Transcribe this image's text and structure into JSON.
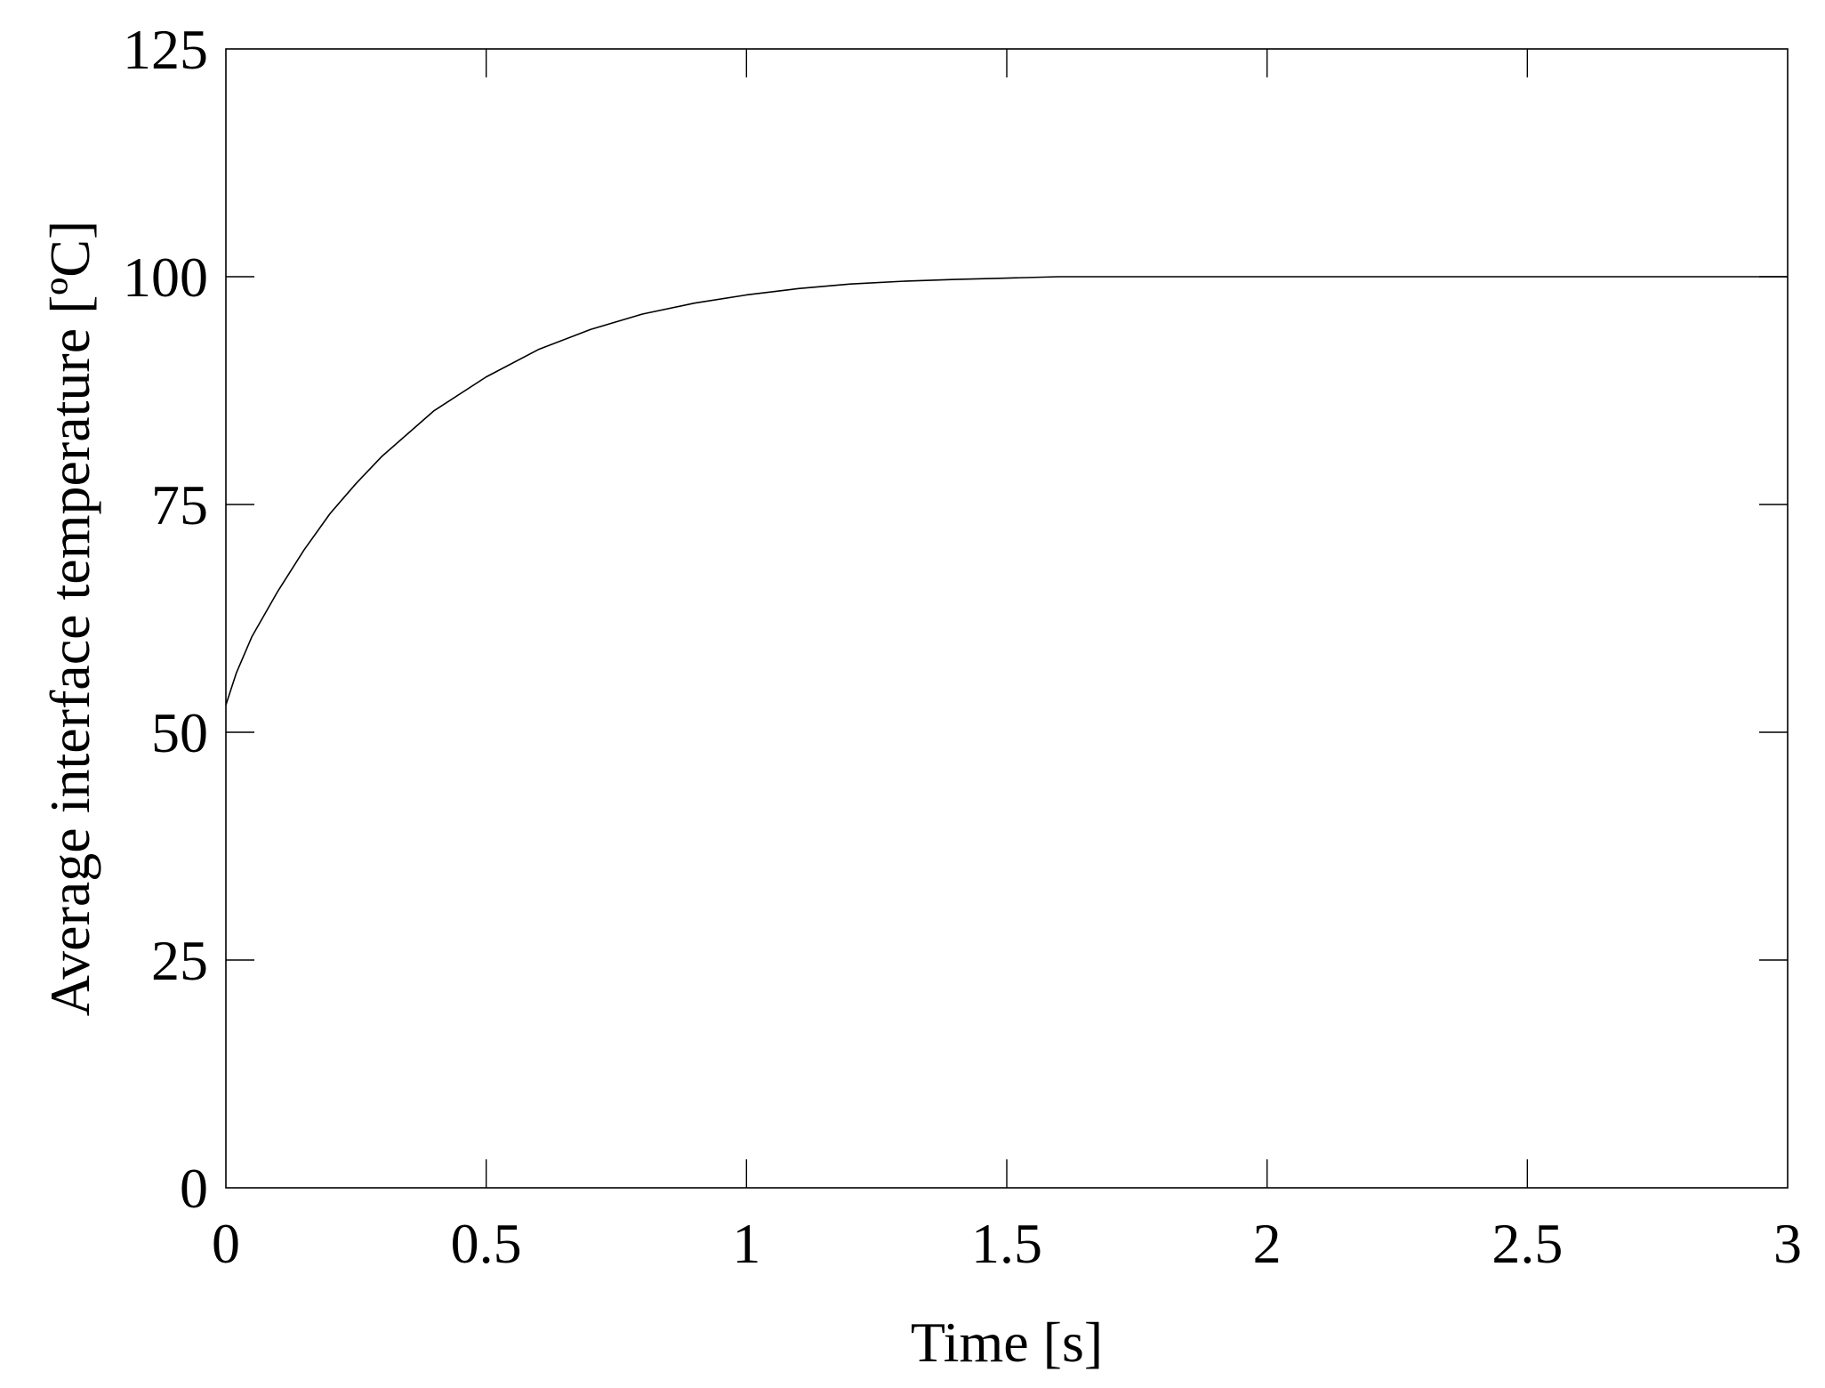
{
  "chart_data": {
    "type": "line",
    "title": "",
    "xlabel": "Time [s]",
    "ylabel": "Average interface temperature [ºC]",
    "xlim": [
      0,
      3
    ],
    "ylim": [
      0,
      125
    ],
    "x_ticks": [
      "0",
      "0.5",
      "1",
      "1.5",
      "2",
      "2.5",
      "3"
    ],
    "y_ticks": [
      "0",
      "25",
      "50",
      "75",
      "100",
      "125"
    ],
    "grid": false,
    "legend": "none",
    "series": [
      {
        "color": "#000000",
        "x": [
          0,
          0.02,
          0.05,
          0.1,
          0.15,
          0.2,
          0.25,
          0.3,
          0.4,
          0.5,
          0.6,
          0.7,
          0.8,
          0.9,
          1.0,
          1.1,
          1.2,
          1.3,
          1.4,
          1.5,
          1.6,
          1.8,
          2.0,
          2.5,
          3.0
        ],
        "y": [
          53,
          56.5,
          60.5,
          65.5,
          70.0,
          74.0,
          77.3,
          80.3,
          85.3,
          89.0,
          92.0,
          94.2,
          95.9,
          97.1,
          98.0,
          98.7,
          99.2,
          99.5,
          99.7,
          99.85,
          100,
          100,
          100,
          100,
          100
        ]
      }
    ]
  }
}
